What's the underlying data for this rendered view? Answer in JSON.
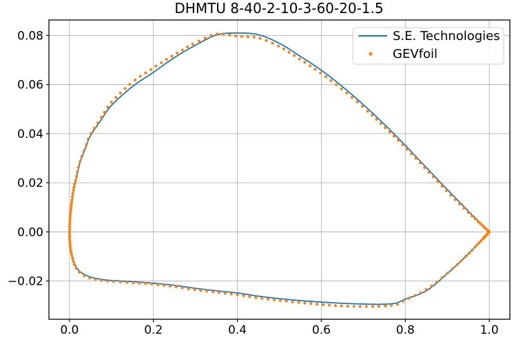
{
  "title": "DHMTU 8-40-2-10-3-60-20-1.5",
  "colors": {
    "background": "#ffffff",
    "line_series": "#1f77b4",
    "marker_series": "#ff7f0e",
    "grid": "#b0b0b0",
    "spine": "#000000",
    "text": "#000000",
    "legend_border": "#cccccc"
  },
  "axes": {
    "xlim": [
      -0.049,
      1.049
    ],
    "ylim": [
      -0.0356,
      0.0863
    ],
    "xticks": [
      0.0,
      0.2,
      0.4,
      0.6,
      0.8,
      1.0
    ],
    "xtick_labels": [
      "0.0",
      "0.2",
      "0.4",
      "0.6",
      "0.8",
      "1.0"
    ],
    "yticks": [
      -0.02,
      0.0,
      0.02,
      0.04,
      0.06,
      0.08
    ],
    "ytick_labels": [
      "−0.02",
      "0.00",
      "0.02",
      "0.04",
      "0.06",
      "0.08"
    ],
    "grid": true,
    "xlabel": "",
    "ylabel": ""
  },
  "legend": {
    "position": "upper right"
  },
  "chart_data": {
    "type": "line",
    "title": "DHMTU 8-40-2-10-3-60-20-1.5",
    "xlabel": "",
    "ylabel": "",
    "grid": true,
    "legend_position": "upper right",
    "description": "DHMTU airfoil profile outline: x = chord position 0..1, y = surface offset. Each series is a closed loop from trailing edge over the upper surface to the leading edge and back along the lower surface.",
    "series": [
      {
        "name": "S.E. Technologies",
        "type": "line",
        "color": "#1f77b4",
        "line_width": 1.8,
        "points": [
          [
            1.0,
            0.0
          ],
          [
            0.95,
            0.0085
          ],
          [
            0.9,
            0.0172
          ],
          [
            0.85,
            0.0262
          ],
          [
            0.8,
            0.0352
          ],
          [
            0.75,
            0.0438
          ],
          [
            0.7,
            0.0518
          ],
          [
            0.65,
            0.0592
          ],
          [
            0.6,
            0.0658
          ],
          [
            0.55,
            0.0715
          ],
          [
            0.5,
            0.0768
          ],
          [
            0.45,
            0.0803
          ],
          [
            0.4,
            0.081
          ],
          [
            0.35,
            0.0802
          ],
          [
            0.3,
            0.076
          ],
          [
            0.25,
            0.071
          ],
          [
            0.2,
            0.065
          ],
          [
            0.15,
            0.0592
          ],
          [
            0.1,
            0.0515
          ],
          [
            0.075,
            0.0455
          ],
          [
            0.05,
            0.0392
          ],
          [
            0.04,
            0.035
          ],
          [
            0.025,
            0.0282
          ],
          [
            0.015,
            0.021
          ],
          [
            0.01,
            0.0175
          ],
          [
            0.005,
            0.0115
          ],
          [
            0.002,
            0.0072
          ],
          [
            0.0005,
            0.003
          ],
          [
            0.0,
            -0.001
          ],
          [
            0.001,
            -0.004
          ],
          [
            0.003,
            -0.007
          ],
          [
            0.006,
            -0.0095
          ],
          [
            0.01,
            -0.012
          ],
          [
            0.015,
            -0.014
          ],
          [
            0.022,
            -0.0157
          ],
          [
            0.032,
            -0.017
          ],
          [
            0.05,
            -0.0184
          ],
          [
            0.075,
            -0.0193
          ],
          [
            0.1,
            -0.0198
          ],
          [
            0.15,
            -0.0203
          ],
          [
            0.2,
            -0.0209
          ],
          [
            0.25,
            -0.0218
          ],
          [
            0.3,
            -0.023
          ],
          [
            0.35,
            -0.024
          ],
          [
            0.4,
            -0.0249
          ],
          [
            0.45,
            -0.0262
          ],
          [
            0.5,
            -0.0272
          ],
          [
            0.55,
            -0.028
          ],
          [
            0.6,
            -0.0286
          ],
          [
            0.65,
            -0.0291
          ],
          [
            0.7,
            -0.0294
          ],
          [
            0.74,
            -0.0295
          ],
          [
            0.775,
            -0.0291
          ],
          [
            0.8,
            -0.0274
          ],
          [
            0.85,
            -0.024
          ],
          [
            0.9,
            -0.017
          ],
          [
            0.95,
            -0.009
          ],
          [
            1.0,
            0.0
          ]
        ]
      },
      {
        "name": "GEVfoil",
        "type": "scatter",
        "color": "#ff7f0e",
        "marker": ".",
        "marker_radius": 2.1,
        "marker_spacing_px": 8.6,
        "points": [
          [
            1.0,
            0.0
          ],
          [
            0.95,
            0.0079
          ],
          [
            0.9,
            0.0164
          ],
          [
            0.85,
            0.0254
          ],
          [
            0.8,
            0.0344
          ],
          [
            0.75,
            0.0428
          ],
          [
            0.7,
            0.0508
          ],
          [
            0.65,
            0.058
          ],
          [
            0.6,
            0.0645
          ],
          [
            0.55,
            0.0702
          ],
          [
            0.5,
            0.0755
          ],
          [
            0.45,
            0.079
          ],
          [
            0.4,
            0.0797
          ],
          [
            0.35,
            0.0806
          ],
          [
            0.3,
            0.077
          ],
          [
            0.25,
            0.0722
          ],
          [
            0.2,
            0.0668
          ],
          [
            0.15,
            0.061
          ],
          [
            0.1,
            0.0528
          ],
          [
            0.075,
            0.0464
          ],
          [
            0.05,
            0.0396
          ],
          [
            0.04,
            0.0355
          ],
          [
            0.025,
            0.0286
          ],
          [
            0.015,
            0.0214
          ],
          [
            0.01,
            0.0178
          ],
          [
            0.005,
            0.0118
          ],
          [
            0.002,
            0.0074
          ],
          [
            0.0005,
            0.003
          ],
          [
            0.0,
            -0.0012
          ],
          [
            0.001,
            -0.0045
          ],
          [
            0.003,
            -0.0075
          ],
          [
            0.006,
            -0.01
          ],
          [
            0.01,
            -0.0126
          ],
          [
            0.015,
            -0.0146
          ],
          [
            0.022,
            -0.0162
          ],
          [
            0.032,
            -0.0175
          ],
          [
            0.05,
            -0.0189
          ],
          [
            0.075,
            -0.0197
          ],
          [
            0.1,
            -0.0202
          ],
          [
            0.15,
            -0.0207
          ],
          [
            0.2,
            -0.0213
          ],
          [
            0.25,
            -0.0223
          ],
          [
            0.3,
            -0.0236
          ],
          [
            0.35,
            -0.0246
          ],
          [
            0.4,
            -0.0256
          ],
          [
            0.45,
            -0.0269
          ],
          [
            0.5,
            -0.0279
          ],
          [
            0.55,
            -0.0288
          ],
          [
            0.6,
            -0.0296
          ],
          [
            0.65,
            -0.0302
          ],
          [
            0.7,
            -0.0304
          ],
          [
            0.74,
            -0.0303
          ],
          [
            0.78,
            -0.0295
          ],
          [
            0.8,
            -0.0277
          ],
          [
            0.85,
            -0.0235
          ],
          [
            0.9,
            -0.0168
          ],
          [
            0.95,
            -0.009
          ],
          [
            1.0,
            0.0
          ]
        ]
      }
    ]
  }
}
